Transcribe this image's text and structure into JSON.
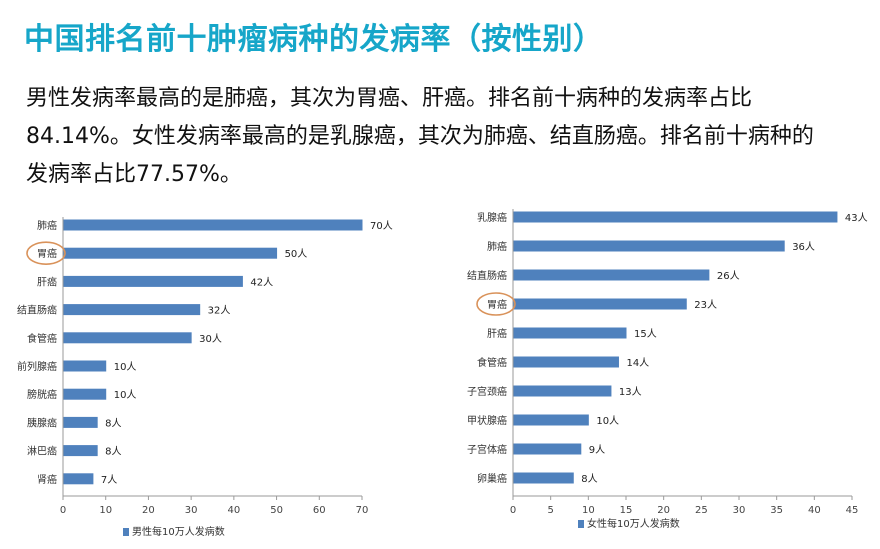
{
  "header": {
    "title": "中国排名前十肿瘤病种的发病率（按性别）"
  },
  "summary": {
    "lines": [
      "男性发病率最高的是肺癌，其次为胃癌、肝癌。排名前十病种的发病率占比",
      "84.14%。女性发病率最高的是乳腺癌，其次为肺癌、结直肠癌。排名前十病种的",
      "发病率占比77.57%。"
    ]
  },
  "colors": {
    "bar": "#4f81bd",
    "highlight_circle": "#d9925a",
    "title": "#16a6c9"
  },
  "chart_data": [
    {
      "type": "bar",
      "orientation": "horizontal",
      "categories": [
        "肺癌",
        "胃癌",
        "肝癌",
        "结直肠癌",
        "食管癌",
        "前列腺癌",
        "膀胱癌",
        "胰腺癌",
        "淋巴癌",
        "肾癌"
      ],
      "values": [
        70,
        50,
        42,
        32,
        30,
        10,
        10,
        8,
        8,
        7
      ],
      "value_labels": [
        "70人",
        "50人",
        "42人",
        "32人",
        "30人",
        "10人",
        "10人",
        "8人",
        "8人",
        "7人"
      ],
      "xlim": [
        0,
        70
      ],
      "xticks": [
        "0",
        "10",
        "20",
        "30",
        "40",
        "50",
        "60",
        "70"
      ],
      "legend": "男性每10万人发病数",
      "legend_position": "bottom",
      "highlighted_category": "胃癌"
    },
    {
      "type": "bar",
      "orientation": "horizontal",
      "categories": [
        "乳腺癌",
        "肺癌",
        "结直肠癌",
        "胃癌",
        "肝癌",
        "食管癌",
        "子宫颈癌",
        "甲状腺癌",
        "子宫体癌",
        "卵巢癌"
      ],
      "values": [
        43,
        36,
        26,
        23,
        15,
        14,
        13,
        10,
        9,
        8
      ],
      "value_labels": [
        "43人",
        "36人",
        "26人",
        "23人",
        "15人",
        "14人",
        "13人",
        "10人",
        "9人",
        "8人"
      ],
      "xlim": [
        0,
        45
      ],
      "xticks": [
        "0",
        "5",
        "10",
        "15",
        "20",
        "25",
        "30",
        "35",
        "40",
        "45"
      ],
      "legend": "女性每10万人发病数",
      "legend_position": "bottom",
      "highlighted_category": "胃癌"
    }
  ]
}
